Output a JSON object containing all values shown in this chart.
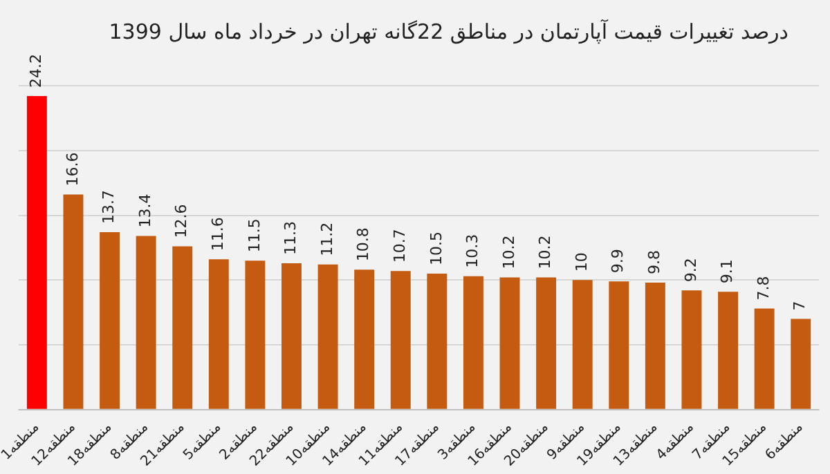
{
  "chart_data": {
    "type": "bar",
    "title": "درصد تغییرات قیمت آپارتمان در مناطق 22گانه تهران در خرداد ماه سال 1399",
    "categories": [
      "منطقه1",
      "منطقه12",
      "منطقه18",
      "منطقه8",
      "منطقه21",
      "منطقه5",
      "منطقه2",
      "منطقه22",
      "منطقه10",
      "منطقه14",
      "منطقه11",
      "منطقه17",
      "منطقه3",
      "منطقه16",
      "منطقه20",
      "منطقه9",
      "منطقه19",
      "منطقه13",
      "منطقه4",
      "منطقه7",
      "منطقه15",
      "منطقه6"
    ],
    "values": [
      24.2,
      16.6,
      13.7,
      13.4,
      12.6,
      11.6,
      11.5,
      11.3,
      11.2,
      10.8,
      10.7,
      10.5,
      10.3,
      10.2,
      10.2,
      10,
      9.9,
      9.8,
      9.2,
      9.1,
      7.8,
      7
    ],
    "colors": [
      "#ff0000",
      "#c55a11",
      "#c55a11",
      "#c55a11",
      "#c55a11",
      "#c55a11",
      "#c55a11",
      "#c55a11",
      "#c55a11",
      "#c55a11",
      "#c55a11",
      "#c55a11",
      "#c55a11",
      "#c55a11",
      "#c55a11",
      "#c55a11",
      "#c55a11",
      "#c55a11",
      "#c55a11",
      "#c55a11",
      "#c55a11",
      "#c55a11"
    ],
    "ylim": [
      0,
      25
    ],
    "yticks": [
      {
        "value": 0,
        "label": null
      },
      {
        "value": 5,
        "label": null
      },
      {
        "value": 10,
        "label": null
      },
      {
        "value": 15,
        "label": null
      },
      {
        "value": 20,
        "label": null
      },
      {
        "value": 25,
        "label": null
      }
    ],
    "tick_labels": "x",
    "grid": "y",
    "data_labels": true,
    "legend": false
  }
}
